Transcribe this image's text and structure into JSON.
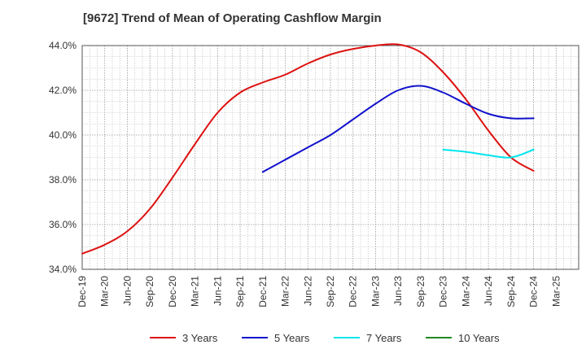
{
  "chart_data": {
    "type": "line",
    "title": "[9672]  Trend of Mean of Operating Cashflow Margin",
    "xlabel": "",
    "ylabel": "",
    "ylim": [
      34.0,
      44.0
    ],
    "y_ticks": [
      "34.0%",
      "36.0%",
      "38.0%",
      "40.0%",
      "42.0%",
      "44.0%"
    ],
    "x_ticks": [
      "Dec-19",
      "Mar-20",
      "Jun-20",
      "Sep-20",
      "Dec-20",
      "Mar-21",
      "Jun-21",
      "Sep-21",
      "Dec-21",
      "Mar-22",
      "Jun-22",
      "Sep-22",
      "Dec-22",
      "Mar-23",
      "Jun-23",
      "Sep-23",
      "Dec-23",
      "Mar-24",
      "Jun-24",
      "Sep-24",
      "Dec-24",
      "Mar-25"
    ],
    "grid": true,
    "legend_position": "bottom",
    "series": [
      {
        "name": "3 Years",
        "color": "#dd1111",
        "x": [
          "Dec-19",
          "Mar-20",
          "Jun-20",
          "Sep-20",
          "Dec-20",
          "Mar-21",
          "Jun-21",
          "Sep-21",
          "Dec-21",
          "Mar-22",
          "Jun-22",
          "Sep-22",
          "Dec-22",
          "Mar-23",
          "Jun-23",
          "Sep-23",
          "Dec-23",
          "Mar-24",
          "Jun-24",
          "Sep-24",
          "Dec-24"
        ],
        "values": [
          34.7,
          35.1,
          35.7,
          36.7,
          38.1,
          39.6,
          41.0,
          41.9,
          42.35,
          42.7,
          43.2,
          43.6,
          43.85,
          44.0,
          44.05,
          43.7,
          42.8,
          41.6,
          40.2,
          39.0,
          38.4
        ]
      },
      {
        "name": "5 Years",
        "color": "#1111cc",
        "x": [
          "Dec-21",
          "Mar-22",
          "Jun-22",
          "Sep-22",
          "Dec-22",
          "Mar-23",
          "Jun-23",
          "Sep-23",
          "Dec-23",
          "Mar-24",
          "Jun-24",
          "Sep-24",
          "Dec-24"
        ],
        "values": [
          38.35,
          38.9,
          39.45,
          40.0,
          40.7,
          41.4,
          42.0,
          42.2,
          41.9,
          41.4,
          40.95,
          40.75,
          40.75
        ]
      },
      {
        "name": "7 Years",
        "color": "#00e5ee",
        "x": [
          "Dec-23",
          "Mar-24",
          "Jun-24",
          "Sep-24",
          "Dec-24"
        ],
        "values": [
          39.35,
          39.25,
          39.1,
          39.0,
          39.35
        ]
      },
      {
        "name": "10 Years",
        "color": "#228822",
        "x": [],
        "values": []
      }
    ]
  }
}
